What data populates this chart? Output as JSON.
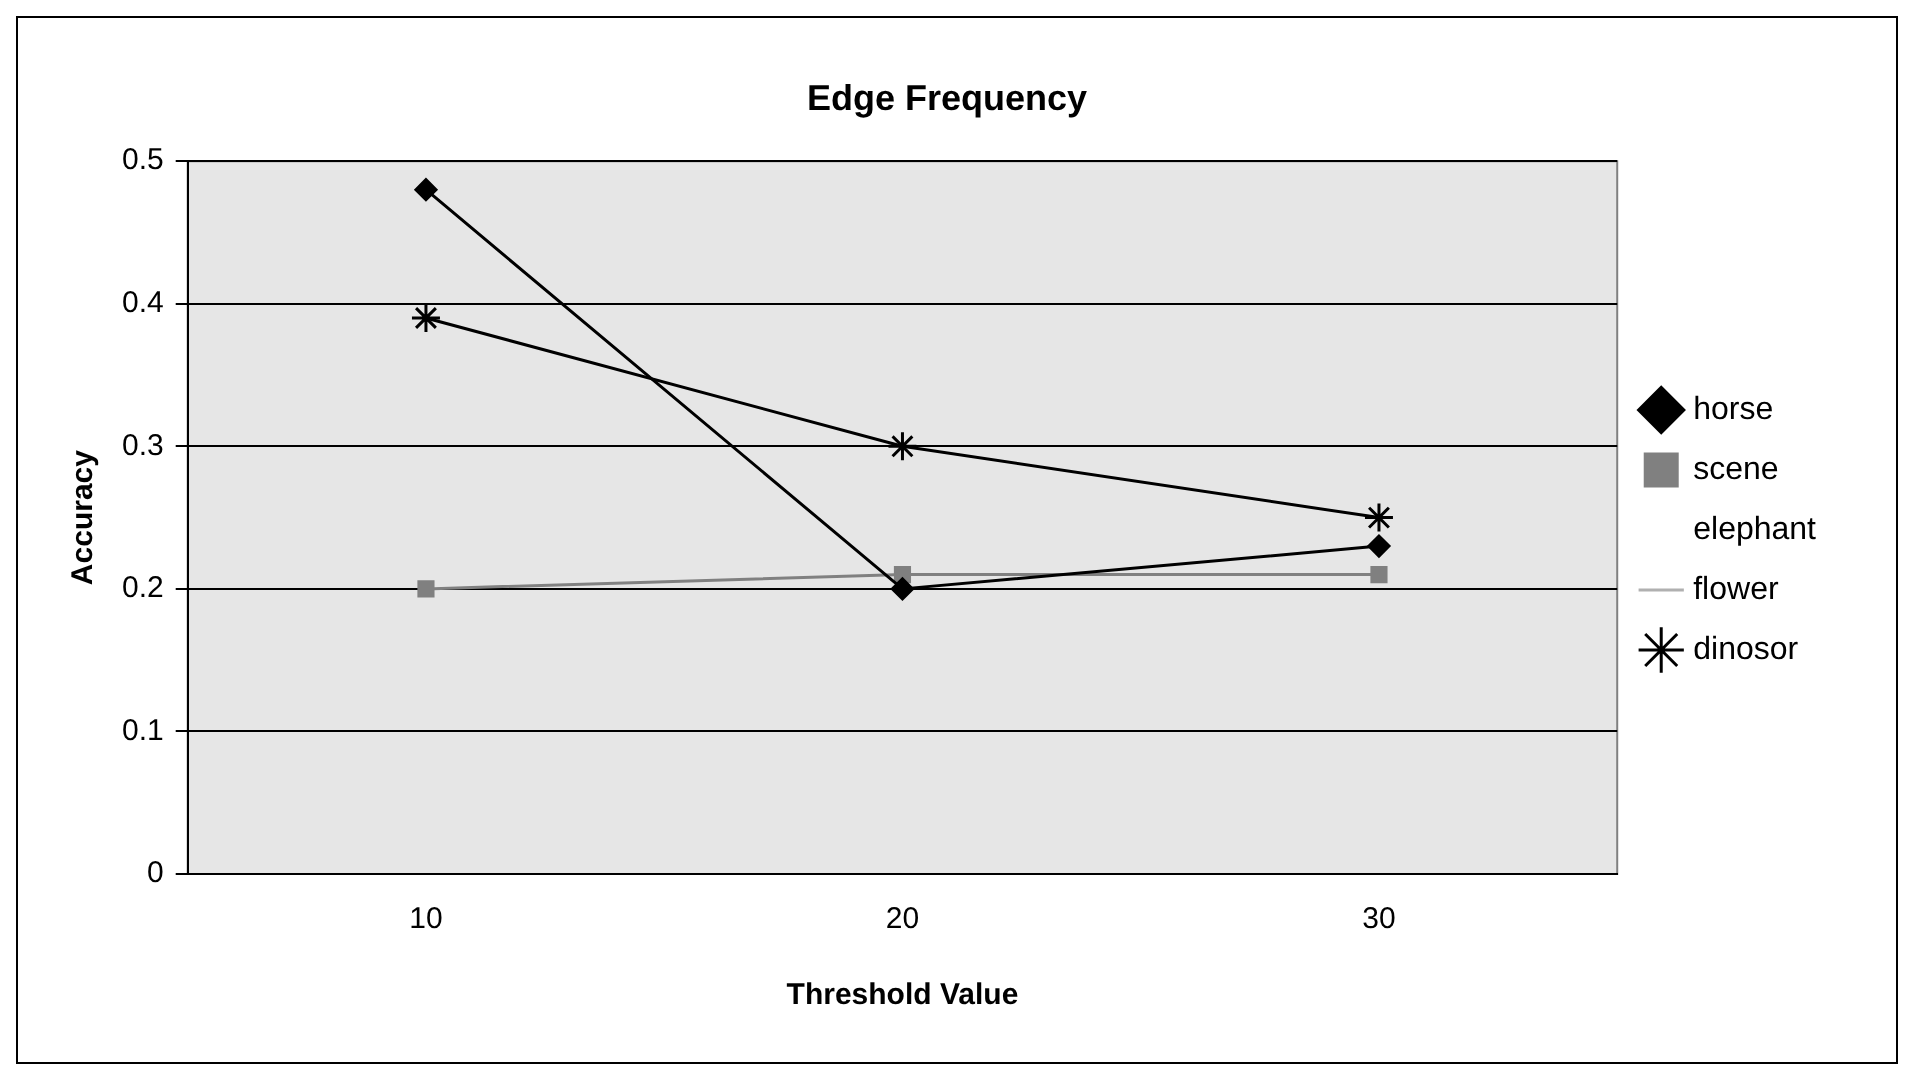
{
  "chart_data": {
    "type": "line",
    "title": "Edge Frequency",
    "xlabel": "Threshold Value",
    "ylabel": "Accuracy",
    "categories": [
      "10",
      "20",
      "30"
    ],
    "series": [
      {
        "name": "horse",
        "color": "#000000",
        "marker": "diamond",
        "line_style": "solid",
        "values": [
          0.48,
          0.2,
          0.23
        ]
      },
      {
        "name": "scene",
        "color": "#808080",
        "marker": "square",
        "line_style": "solid",
        "values": [
          0.2,
          0.21,
          0.21
        ]
      },
      {
        "name": "elephant",
        "marker": "none",
        "line_style": "solid",
        "values": [
          null,
          null,
          null
        ]
      },
      {
        "name": "flower",
        "color": "#b0b0b0",
        "marker": "none",
        "line_style": "dashed",
        "values": [
          null,
          null,
          null
        ]
      },
      {
        "name": "dinosor",
        "color": "#000000",
        "marker": "cross",
        "line_style": "solid",
        "values": [
          0.39,
          0.3,
          0.25
        ]
      }
    ],
    "ylim": [
      0,
      0.5
    ],
    "yticks": [
      0,
      0.1,
      0.2,
      0.3,
      0.4,
      0.5
    ],
    "grid": "y",
    "legend": "right"
  }
}
